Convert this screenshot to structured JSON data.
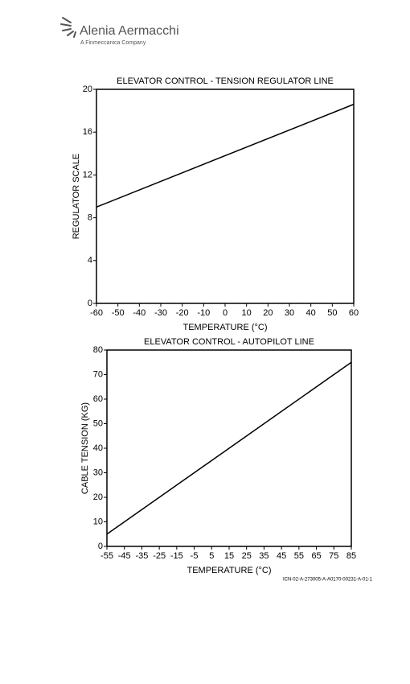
{
  "header": {
    "company": "Alenia Aermacchi",
    "tagline": "A Finmeccanica Company"
  },
  "chart_data": [
    {
      "type": "line",
      "title": "ELEVATOR CONTROL - TENSION REGULATOR LINE",
      "x_label": "TEMPERATURE (°C)",
      "y_label": "REGULATOR SCALE",
      "x": [
        -60,
        60
      ],
      "values": [
        9.0,
        18.6
      ],
      "color": "#000000",
      "xlim": [
        -60,
        60
      ],
      "xticks": [
        -60,
        -50,
        -40,
        -30,
        -20,
        -10,
        0,
        10,
        20,
        30,
        40,
        50,
        60
      ],
      "ylim": [
        0,
        20
      ],
      "yticks": [
        0,
        4,
        8,
        12,
        16,
        20
      ],
      "grid": false
    },
    {
      "type": "line",
      "title": "ELEVATOR CONTROL - AUTOPILOT LINE",
      "x_label": "TEMPERATURE (°C)",
      "y_label": "CABLE TENSION (KG)",
      "x": [
        -55,
        85
      ],
      "values": [
        5,
        75
      ],
      "color": "#000000",
      "xlim": [
        -55,
        85
      ],
      "xticks": [
        -55,
        -45,
        -35,
        -25,
        -15,
        -5,
        5,
        15,
        25,
        35,
        45,
        55,
        65,
        75,
        85
      ],
      "ylim": [
        0,
        80
      ],
      "yticks": [
        0,
        10,
        20,
        30,
        40,
        50,
        60,
        70,
        80
      ],
      "grid": false
    }
  ],
  "figure_code": "ICN-02-A-273005-A-A0170-00231-A-01-1"
}
